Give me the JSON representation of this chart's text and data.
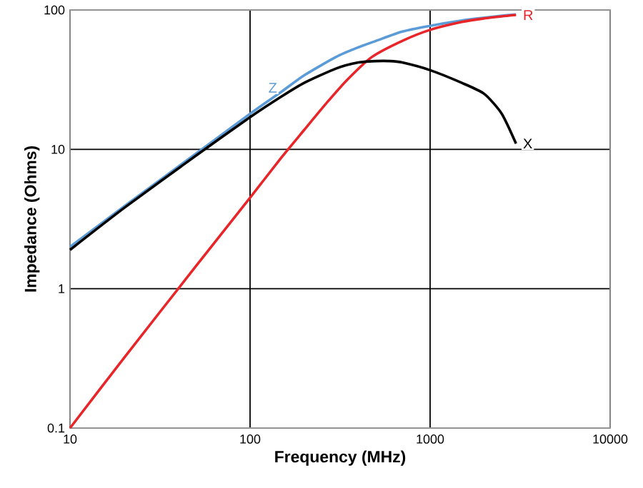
{
  "chart_data": {
    "type": "line",
    "xlabel": "Frequency (MHz)",
    "ylabel": "Impedance (Ohms)",
    "log": "xy",
    "grid": true,
    "legend": false,
    "xlim": [
      10,
      10000
    ],
    "ylim": [
      0.1,
      100
    ],
    "xticks": [
      10,
      100,
      1000,
      10000
    ],
    "yticks": [
      0.1,
      1,
      10,
      100
    ],
    "series": [
      {
        "name": "Z",
        "color": "#5b9bd8",
        "x": [
          10,
          20,
          50,
          100,
          150,
          200,
          300,
          400,
          500,
          700,
          1000,
          1500,
          2000,
          2500,
          3000
        ],
        "values": [
          2.0,
          3.9,
          9.3,
          18,
          26,
          34,
          46,
          54,
          60,
          70,
          77,
          84,
          88,
          91,
          93
        ]
      },
      {
        "name": "R",
        "color": "#e8262a",
        "x": [
          10,
          20,
          50,
          100,
          150,
          200,
          270,
          350,
          475,
          700,
          1000,
          1500,
          2000,
          2500,
          3000
        ],
        "values": [
          0.1,
          0.32,
          1.45,
          4.5,
          8.8,
          13.8,
          22,
          32,
          46,
          60,
          72,
          82,
          87,
          90,
          92
        ]
      },
      {
        "name": "X",
        "color": "#000000",
        "x": [
          10,
          20,
          50,
          100,
          150,
          200,
          300,
          400,
          500,
          600,
          700,
          1000,
          1500,
          2000,
          2500,
          3000
        ],
        "values": [
          1.9,
          3.8,
          9.0,
          17,
          24,
          30,
          38,
          42,
          43,
          43,
          42,
          37,
          30,
          25,
          18,
          11
        ]
      }
    ]
  }
}
